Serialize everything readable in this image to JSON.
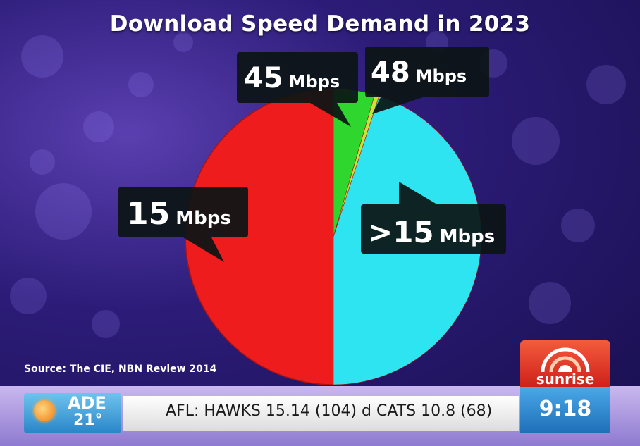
{
  "chart_data": {
    "type": "pie",
    "title": "Download Speed Demand in 2023",
    "slices": [
      {
        "label": "15 Mbps",
        "value": 50.0,
        "color": "#ee1c1c"
      },
      {
        "label": "45 Mbps",
        "value": 4.5,
        "color": "#2ed62e"
      },
      {
        "label": "48 Mbps",
        "value": 0.5,
        "color": "#c8e23c"
      },
      {
        "label": ">15 Mbps",
        "value": 45.0,
        "color": "#2ee4f0"
      }
    ],
    "callouts": [
      {
        "number": "15",
        "unit": "Mbps"
      },
      {
        "number": "45",
        "unit": "Mbps"
      },
      {
        "number": "48",
        "unit": "Mbps"
      },
      {
        "number": ">15",
        "unit": "Mbps"
      }
    ],
    "source": "Source: The CIE, NBN Review 2014"
  },
  "ticker": {
    "city": "ADE",
    "temperature": "21°",
    "headline": "AFL: HAWKS 15.14 (104) d CATS 10.8 (68)",
    "brand": "sunrise",
    "time": "9:18"
  },
  "colors": {
    "background": "#2c1c78",
    "callout": "#0c1414"
  },
  "icons": {
    "weather": "sun-icon",
    "brand": "sunrise-logo-icon"
  }
}
